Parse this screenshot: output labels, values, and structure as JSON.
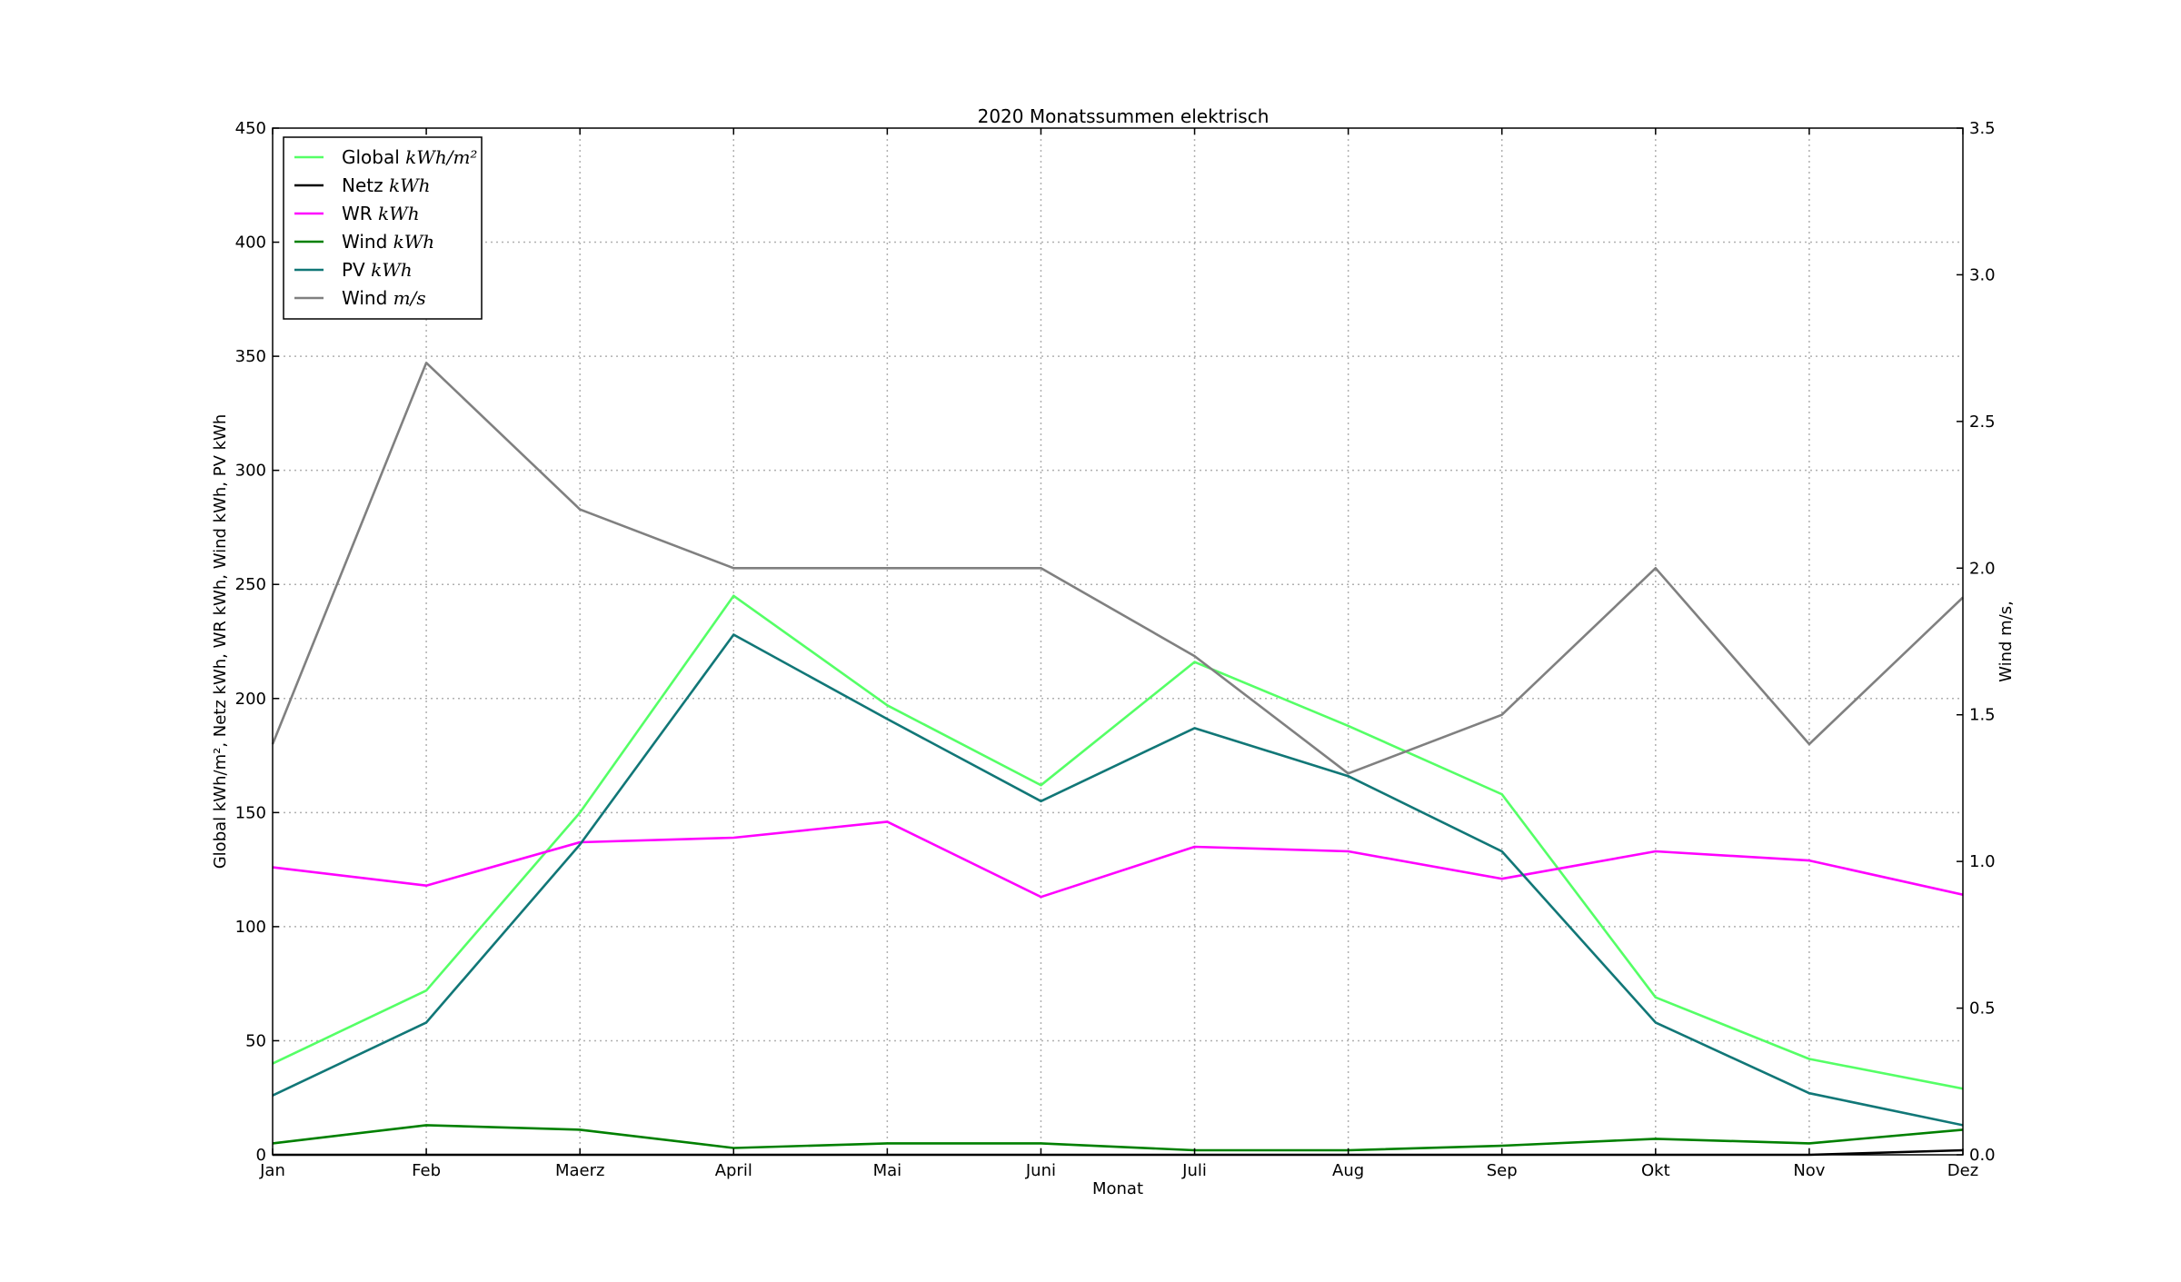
{
  "chart_data": {
    "type": "line",
    "title": "2020 Monatssummen elektrisch",
    "xlabel": "Monat",
    "ylabel_left": "Global kWh/m², Netz kWh, WR kWh, Wind kWh, PV kWh",
    "ylabel_right": "Wind m/s,",
    "categories": [
      "Jan",
      "Feb",
      "Maerz",
      "April",
      "Mai",
      "Juni",
      "Juli",
      "Aug",
      "Sep",
      "Okt",
      "Nov",
      "Dez"
    ],
    "ylim_left": [
      0,
      450
    ],
    "yticks_left": [
      "0",
      "50",
      "100",
      "150",
      "200",
      "250",
      "300",
      "350",
      "400",
      "450"
    ],
    "ylim_right": [
      0,
      3.5
    ],
    "yticks_right": [
      "0.0",
      "0.5",
      "1.0",
      "1.5",
      "2.0",
      "2.5",
      "3.0",
      "3.5"
    ],
    "grid": true,
    "legend_position": "top-left",
    "series": [
      {
        "name": "Global",
        "unit": "kWh/m²",
        "axis": "left",
        "color": "#55ff66",
        "values": [
          40,
          72,
          150,
          245,
          197,
          162,
          216,
          188,
          158,
          69,
          42,
          29
        ]
      },
      {
        "name": "Netz",
        "unit": "kWh",
        "axis": "left",
        "color": "#000000",
        "values": [
          0,
          0,
          0,
          0,
          0,
          0,
          0,
          0,
          0,
          0,
          0,
          2
        ]
      },
      {
        "name": "WR",
        "unit": "kWh",
        "axis": "left",
        "color": "#ff00ff",
        "values": [
          126,
          118,
          137,
          139,
          146,
          113,
          135,
          133,
          121,
          133,
          129,
          114
        ]
      },
      {
        "name": "Wind",
        "unit": "kWh",
        "axis": "left",
        "color": "#008000",
        "values": [
          5,
          13,
          11,
          3,
          5,
          5,
          2,
          2,
          4,
          7,
          5,
          11
        ]
      },
      {
        "name": "PV",
        "unit": "kWh",
        "axis": "left",
        "color": "#117777",
        "values": [
          26,
          58,
          136,
          228,
          191,
          155,
          187,
          166,
          133,
          58,
          27,
          13
        ]
      },
      {
        "name": "Wind",
        "unit": "m/s",
        "axis": "right",
        "color": "#808080",
        "values": [
          1.4,
          2.7,
          2.2,
          2.0,
          2.0,
          2.0,
          1.7,
          1.3,
          1.5,
          2.0,
          1.4,
          1.9
        ]
      }
    ]
  }
}
